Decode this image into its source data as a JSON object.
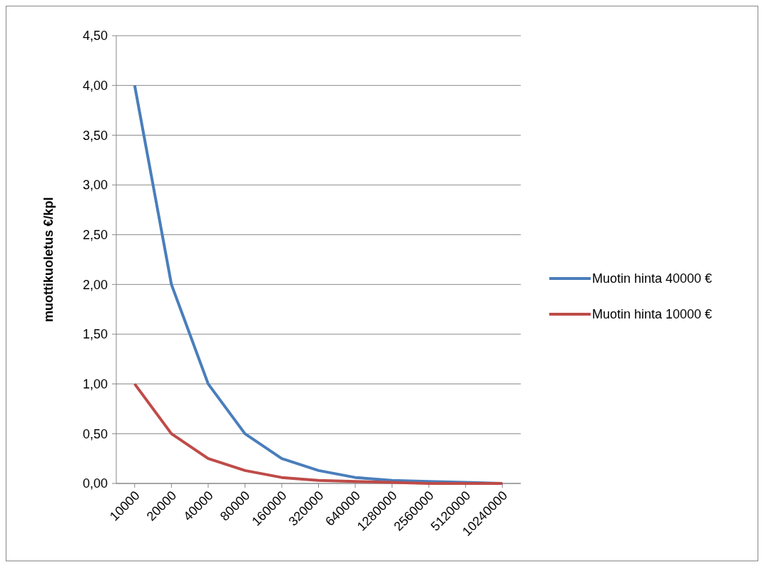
{
  "chart_data": {
    "type": "line",
    "ylabel": "muottikuoletus €/kpl",
    "categories": [
      "10000",
      "20000",
      "40000",
      "80000",
      "160000",
      "320000",
      "640000",
      "1280000",
      "2560000",
      "5120000",
      "10240000"
    ],
    "series": [
      {
        "name": "Muotin hinta 40000 €",
        "color": "#4a7ebb",
        "values": [
          4,
          2,
          1,
          0.5,
          0.25,
          0.13,
          0.06,
          0.03,
          0.02,
          0.01,
          0
        ]
      },
      {
        "name": "Muotin hinta 10000 €",
        "color": "#be4b48",
        "values": [
          1,
          0.5,
          0.25,
          0.13,
          0.06,
          0.03,
          0.02,
          0.01,
          0,
          0,
          0
        ]
      }
    ],
    "ylim": [
      0,
      4.5
    ],
    "yticks": [
      {
        "value": 0,
        "label": "0,00"
      },
      {
        "value": 0.5,
        "label": "0,50"
      },
      {
        "value": 1,
        "label": "1,00"
      },
      {
        "value": 1.5,
        "label": "1,50"
      },
      {
        "value": 2,
        "label": "2,00"
      },
      {
        "value": 2.5,
        "label": "2,50"
      },
      {
        "value": 3,
        "label": "3,00"
      },
      {
        "value": 3.5,
        "label": "3,50"
      },
      {
        "value": 4,
        "label": "4,00"
      },
      {
        "value": 4.5,
        "label": "4,50"
      }
    ],
    "grid": "y",
    "legend": "right",
    "marker": "none",
    "line_style": "solid"
  }
}
